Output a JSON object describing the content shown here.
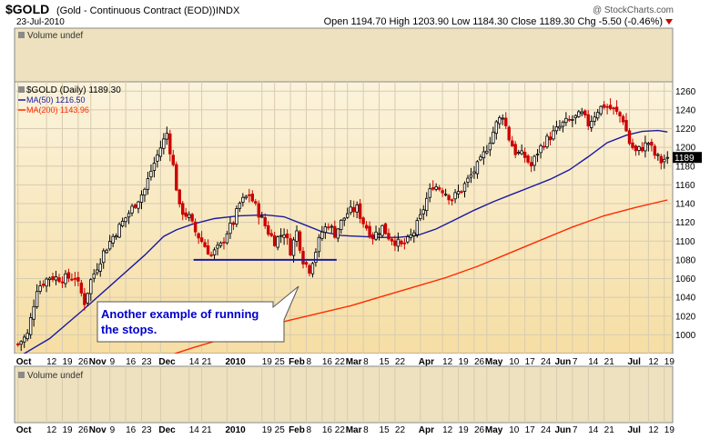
{
  "header": {
    "symbol": "$GOLD",
    "description": "(Gold - Continuous Contract (EOD))",
    "exchange": "INDX",
    "date": "23-Jul-2010",
    "ohlc": "Open 1194.70  High 1203.90  Low 1184.30  Close 1189.30  Chg -5.50 (-0.46%)",
    "copyright": "@ StockCharts.com"
  },
  "volume_label": "Volume undef",
  "legend": {
    "price": "$GOLD (Daily) 1189.30",
    "ma50": "MA(50) 1216.50",
    "ma200": "MA(200) 1143.96"
  },
  "annotation": {
    "line1": "Another example of running",
    "line2": "the stops."
  },
  "colors": {
    "background": "#faebc3",
    "up": "#000000",
    "down": "#cc0000",
    "ma50": "#1a1aa0",
    "ma200": "#ff2a00",
    "support": "#1a1aa0",
    "annotation_text": "#0000cc"
  },
  "chart_data": {
    "type": "candlestick",
    "ylim": [
      980,
      1270
    ],
    "yticks": [
      1000,
      1020,
      1040,
      1060,
      1080,
      1100,
      1120,
      1140,
      1160,
      1180,
      1200,
      1220,
      1240,
      1260
    ],
    "x_tick_labels": [
      {
        "label": "Oct",
        "day": 0,
        "bold": true
      },
      {
        "label": "12",
        "day": 9
      },
      {
        "label": "19",
        "day": 14
      },
      {
        "label": "26",
        "day": 19
      },
      {
        "label": "Nov",
        "day": 23,
        "bold": true
      },
      {
        "label": "9",
        "day": 29
      },
      {
        "label": "16",
        "day": 34
      },
      {
        "label": "23",
        "day": 39
      },
      {
        "label": "Dec",
        "day": 45,
        "bold": true
      },
      {
        "label": "14",
        "day": 54
      },
      {
        "label": "21",
        "day": 58
      },
      {
        "label": "2010",
        "day": 66,
        "bold": true
      },
      {
        "label": "19",
        "day": 77
      },
      {
        "label": "25",
        "day": 81
      },
      {
        "label": "Feb",
        "day": 86,
        "bold": true
      },
      {
        "label": "8",
        "day": 91
      },
      {
        "label": "16",
        "day": 96
      },
      {
        "label": "22",
        "day": 100
      },
      {
        "label": "Mar",
        "day": 104,
        "bold": true
      },
      {
        "label": "8",
        "day": 109
      },
      {
        "label": "15",
        "day": 114
      },
      {
        "label": "22",
        "day": 119
      },
      {
        "label": "Apr",
        "day": 127,
        "bold": true
      },
      {
        "label": "12",
        "day": 134
      },
      {
        "label": "19",
        "day": 139
      },
      {
        "label": "26",
        "day": 144
      },
      {
        "label": "May",
        "day": 148,
        "bold": true
      },
      {
        "label": "10",
        "day": 155
      },
      {
        "label": "17",
        "day": 160
      },
      {
        "label": "24",
        "day": 165
      },
      {
        "label": "Jun",
        "day": 170,
        "bold": true
      },
      {
        "label": "7",
        "day": 175
      },
      {
        "label": "14",
        "day": 180
      },
      {
        "label": "21",
        "day": 185
      },
      {
        "label": "Jul",
        "day": 193,
        "bold": true
      },
      {
        "label": "12",
        "day": 199
      },
      {
        "label": "19",
        "day": 204
      }
    ],
    "keypoints": [
      [
        0,
        990
      ],
      [
        3,
        1000
      ],
      [
        6,
        1050
      ],
      [
        10,
        1062
      ],
      [
        14,
        1060
      ],
      [
        18,
        1062
      ],
      [
        21,
        1035
      ],
      [
        23,
        1058
      ],
      [
        27,
        1088
      ],
      [
        30,
        1105
      ],
      [
        33,
        1120
      ],
      [
        37,
        1140
      ],
      [
        40,
        1155
      ],
      [
        42,
        1175
      ],
      [
        45,
        1200
      ],
      [
        47,
        1215
      ],
      [
        49,
        1180
      ],
      [
        51,
        1135
      ],
      [
        54,
        1125
      ],
      [
        56,
        1110
      ],
      [
        58,
        1100
      ],
      [
        61,
        1085
      ],
      [
        64,
        1095
      ],
      [
        66,
        1110
      ],
      [
        68,
        1120
      ],
      [
        70,
        1140
      ],
      [
        73,
        1150
      ],
      [
        76,
        1130
      ],
      [
        79,
        1110
      ],
      [
        81,
        1100
      ],
      [
        84,
        1110
      ],
      [
        86,
        1090
      ],
      [
        88,
        1110
      ],
      [
        90,
        1080
      ],
      [
        92,
        1070
      ],
      [
        94,
        1090
      ],
      [
        96,
        1110
      ],
      [
        98,
        1118
      ],
      [
        100,
        1108
      ],
      [
        102,
        1120
      ],
      [
        104,
        1130
      ],
      [
        107,
        1135
      ],
      [
        109,
        1120
      ],
      [
        112,
        1105
      ],
      [
        115,
        1115
      ],
      [
        117,
        1105
      ],
      [
        119,
        1100
      ],
      [
        121,
        1095
      ],
      [
        123,
        1100
      ],
      [
        125,
        1110
      ],
      [
        127,
        1125
      ],
      [
        129,
        1145
      ],
      [
        131,
        1160
      ],
      [
        134,
        1155
      ],
      [
        137,
        1145
      ],
      [
        140,
        1155
      ],
      [
        143,
        1170
      ],
      [
        146,
        1185
      ],
      [
        148,
        1200
      ],
      [
        151,
        1225
      ],
      [
        153,
        1235
      ],
      [
        155,
        1210
      ],
      [
        157,
        1195
      ],
      [
        160,
        1190
      ],
      [
        162,
        1180
      ],
      [
        164,
        1195
      ],
      [
        166,
        1205
      ],
      [
        169,
        1215
      ],
      [
        172,
        1225
      ],
      [
        175,
        1230
      ],
      [
        178,
        1235
      ],
      [
        180,
        1225
      ],
      [
        183,
        1240
      ],
      [
        185,
        1245
      ],
      [
        188,
        1240
      ],
      [
        191,
        1230
      ],
      [
        193,
        1205
      ],
      [
        195,
        1195
      ],
      [
        197,
        1200
      ],
      [
        199,
        1205
      ],
      [
        201,
        1192
      ],
      [
        203,
        1185
      ],
      [
        205,
        1190
      ]
    ],
    "ma50": [
      [
        0,
        976
      ],
      [
        10,
        996
      ],
      [
        20,
        1025
      ],
      [
        30,
        1055
      ],
      [
        40,
        1085
      ],
      [
        46,
        1105
      ],
      [
        50,
        1112
      ],
      [
        55,
        1118
      ],
      [
        62,
        1124
      ],
      [
        70,
        1127
      ],
      [
        78,
        1128
      ],
      [
        84,
        1126
      ],
      [
        90,
        1118
      ],
      [
        96,
        1110
      ],
      [
        102,
        1106
      ],
      [
        108,
        1105
      ],
      [
        114,
        1104
      ],
      [
        120,
        1104
      ],
      [
        126,
        1106
      ],
      [
        132,
        1113
      ],
      [
        138,
        1123
      ],
      [
        144,
        1133
      ],
      [
        150,
        1142
      ],
      [
        156,
        1150
      ],
      [
        162,
        1158
      ],
      [
        168,
        1166
      ],
      [
        174,
        1176
      ],
      [
        180,
        1190
      ],
      [
        186,
        1205
      ],
      [
        192,
        1213
      ],
      [
        197,
        1217
      ],
      [
        202,
        1218
      ],
      [
        205,
        1216.5
      ]
    ],
    "ma200": [
      [
        45,
        975
      ],
      [
        55,
        986
      ],
      [
        65,
        996
      ],
      [
        75,
        1006
      ],
      [
        85,
        1015
      ],
      [
        95,
        1023
      ],
      [
        105,
        1031
      ],
      [
        115,
        1041
      ],
      [
        125,
        1051
      ],
      [
        135,
        1061
      ],
      [
        145,
        1073
      ],
      [
        155,
        1087
      ],
      [
        165,
        1101
      ],
      [
        175,
        1115
      ],
      [
        185,
        1127
      ],
      [
        195,
        1136
      ],
      [
        205,
        1143.96
      ]
    ],
    "support_line": {
      "from_day": 56,
      "to_day": 100,
      "value": 1080
    },
    "last_close": 1189.3
  }
}
